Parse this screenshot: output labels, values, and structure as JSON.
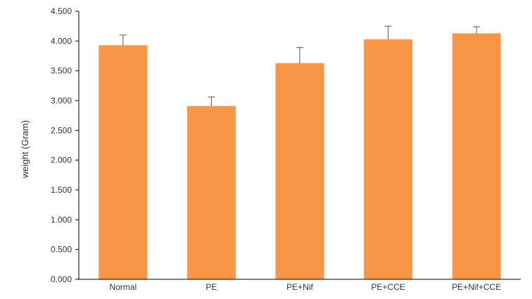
{
  "chart_data": {
    "type": "bar",
    "title": "",
    "xlabel": "",
    "ylabel": "weight (Gram)",
    "categories": [
      "Normal",
      "PE",
      "PE+Nif",
      "PE+CCE",
      "PE+Nif+CCE"
    ],
    "values": [
      3.93,
      2.91,
      3.63,
      4.03,
      4.13
    ],
    "error_bars_upper": [
      0.17,
      0.15,
      0.26,
      0.22,
      0.11
    ],
    "ylim": [
      0,
      4.5
    ],
    "yticks": [
      0,
      0.5,
      1.0,
      1.5,
      2.0,
      2.5,
      3.0,
      3.5,
      4.0,
      4.5
    ],
    "ytick_labels": [
      "0.000",
      "0.500",
      "1.000",
      "1.500",
      "2.000",
      "2.500",
      "3.000",
      "3.500",
      "4.000",
      "4.500"
    ],
    "grid": false,
    "legend": "none",
    "colors": {
      "bar": "#F79646",
      "axis": "#000000",
      "error_bar": "#555555"
    }
  }
}
